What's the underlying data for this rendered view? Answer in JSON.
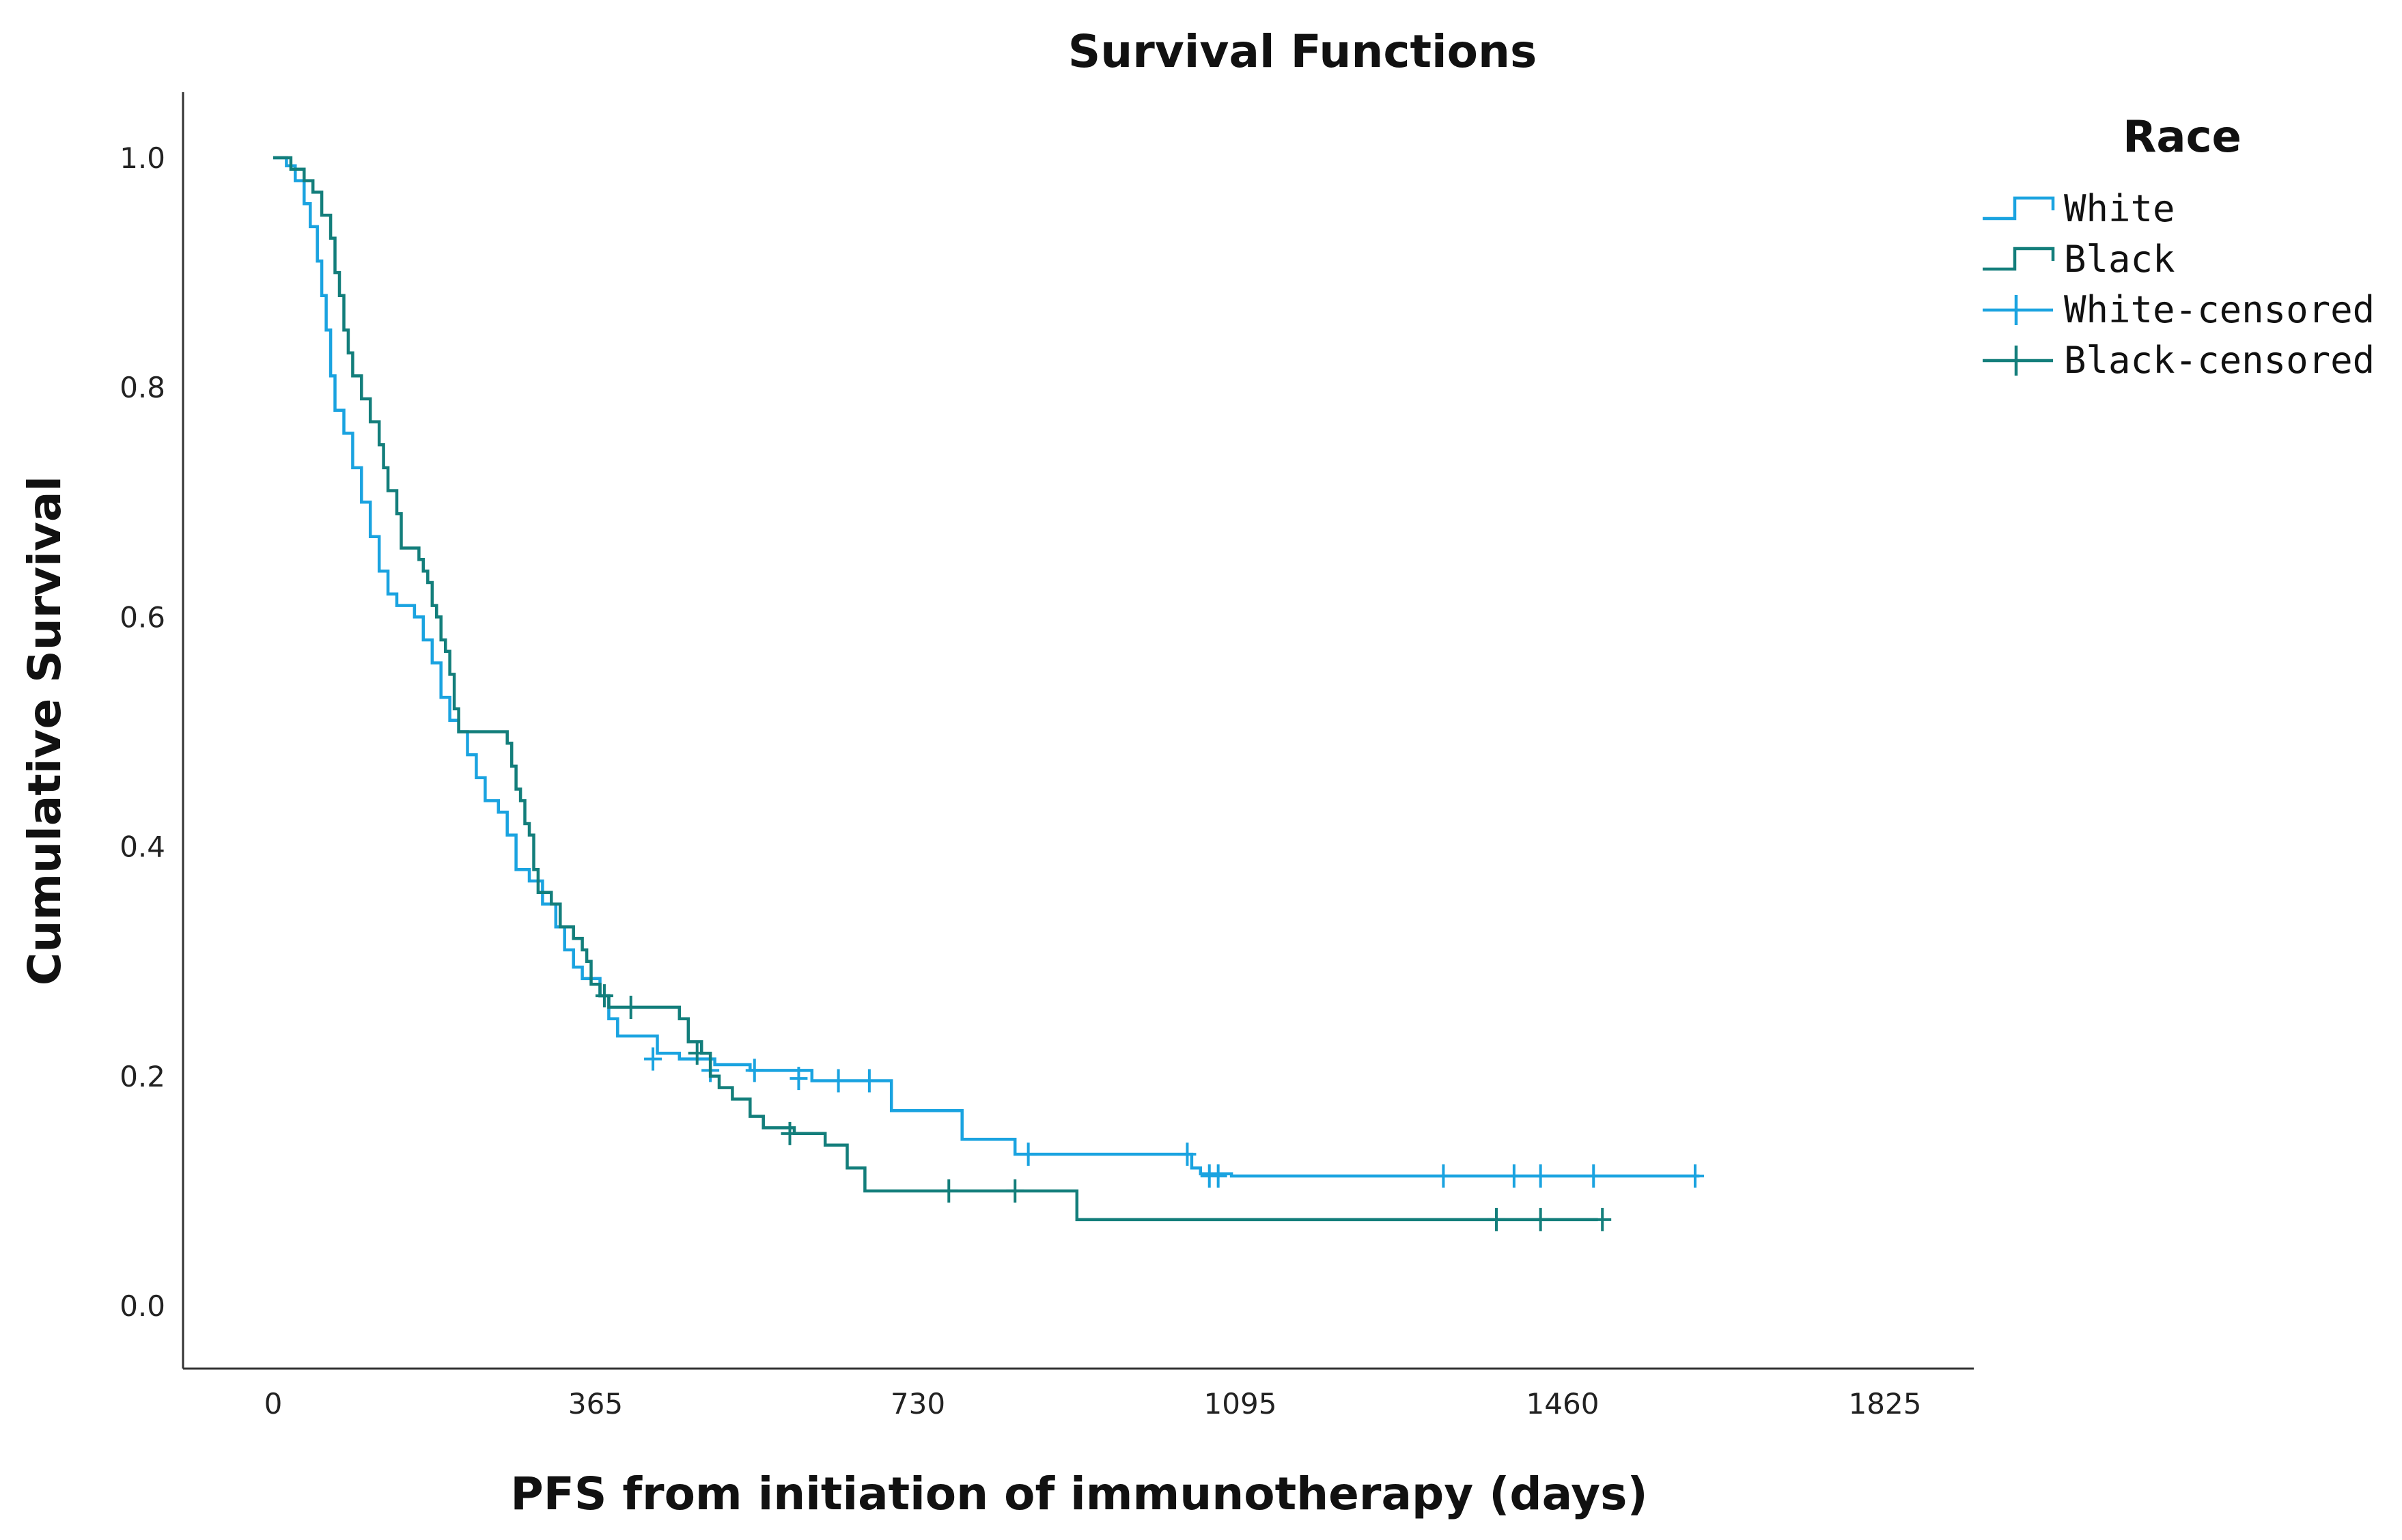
{
  "chart_data": {
    "type": "line",
    "subtype": "kaplan-meier-step",
    "title": "Survival Functions",
    "xlabel": "PFS from initiation of immunotherapy (days)",
    "ylabel": "Cumulative Survival",
    "xlim": [
      0,
      1825
    ],
    "ylim": [
      0,
      1.0
    ],
    "x_ticks": [
      0,
      365,
      730,
      1095,
      1460,
      1825
    ],
    "x_tick_labels": [
      "0",
      "365",
      "730",
      "1095",
      "1460",
      "1825"
    ],
    "y_ticks": [
      0,
      0.2,
      0.4,
      0.6,
      0.8,
      1.0
    ],
    "y_tick_labels": [
      "0.0",
      "0.2",
      "0.4",
      "0.6",
      "0.8",
      "1.0"
    ],
    "grid": false,
    "legend": {
      "title": "Race",
      "placement": "top-right-outside",
      "entries": [
        {
          "label": "White",
          "kind": "step",
          "series": "White"
        },
        {
          "label": "Black",
          "kind": "step",
          "series": "Black"
        },
        {
          "label": "White-censored",
          "kind": "censor",
          "series": "White"
        },
        {
          "label": "Black-censored",
          "kind": "censor",
          "series": "Black"
        }
      ]
    },
    "series": [
      {
        "name": "White",
        "color": "#1aa3e0",
        "steps": [
          [
            0,
            1.0
          ],
          [
            15,
            0.993
          ],
          [
            25,
            0.98
          ],
          [
            35,
            0.96
          ],
          [
            42,
            0.94
          ],
          [
            50,
            0.91
          ],
          [
            55,
            0.88
          ],
          [
            60,
            0.85
          ],
          [
            65,
            0.81
          ],
          [
            70,
            0.78
          ],
          [
            80,
            0.76
          ],
          [
            90,
            0.73
          ],
          [
            100,
            0.7
          ],
          [
            110,
            0.67
          ],
          [
            120,
            0.64
          ],
          [
            130,
            0.62
          ],
          [
            140,
            0.61
          ],
          [
            160,
            0.6
          ],
          [
            170,
            0.58
          ],
          [
            180,
            0.56
          ],
          [
            190,
            0.53
          ],
          [
            200,
            0.51
          ],
          [
            210,
            0.5
          ],
          [
            220,
            0.48
          ],
          [
            230,
            0.46
          ],
          [
            240,
            0.44
          ],
          [
            255,
            0.43
          ],
          [
            265,
            0.41
          ],
          [
            275,
            0.38
          ],
          [
            290,
            0.37
          ],
          [
            305,
            0.35
          ],
          [
            320,
            0.33
          ],
          [
            330,
            0.31
          ],
          [
            340,
            0.295
          ],
          [
            350,
            0.285
          ],
          [
            370,
            0.27
          ],
          [
            380,
            0.25
          ],
          [
            390,
            0.235
          ],
          [
            435,
            0.22
          ],
          [
            460,
            0.215
          ],
          [
            500,
            0.21
          ],
          [
            540,
            0.205
          ],
          [
            610,
            0.196
          ],
          [
            700,
            0.17
          ],
          [
            780,
            0.145
          ],
          [
            840,
            0.132
          ],
          [
            1040,
            0.12
          ],
          [
            1050,
            0.115
          ],
          [
            1085,
            0.113
          ],
          [
            1615,
            0.113
          ]
        ],
        "censored": [
          [
            430,
            0.215
          ],
          [
            495,
            0.205
          ],
          [
            545,
            0.205
          ],
          [
            595,
            0.198
          ],
          [
            640,
            0.196
          ],
          [
            675,
            0.196
          ],
          [
            855,
            0.132
          ],
          [
            1035,
            0.132
          ],
          [
            1060,
            0.113
          ],
          [
            1070,
            0.113
          ],
          [
            1325,
            0.113
          ],
          [
            1405,
            0.113
          ],
          [
            1435,
            0.113
          ],
          [
            1495,
            0.113
          ],
          [
            1610,
            0.113
          ]
        ]
      },
      {
        "name": "Black",
        "color": "#137e7b",
        "steps": [
          [
            0,
            1.0
          ],
          [
            20,
            0.99
          ],
          [
            35,
            0.98
          ],
          [
            45,
            0.97
          ],
          [
            55,
            0.95
          ],
          [
            65,
            0.93
          ],
          [
            70,
            0.9
          ],
          [
            75,
            0.88
          ],
          [
            80,
            0.85
          ],
          [
            85,
            0.83
          ],
          [
            90,
            0.81
          ],
          [
            100,
            0.79
          ],
          [
            110,
            0.77
          ],
          [
            120,
            0.75
          ],
          [
            125,
            0.73
          ],
          [
            130,
            0.71
          ],
          [
            140,
            0.69
          ],
          [
            145,
            0.66
          ],
          [
            165,
            0.65
          ],
          [
            170,
            0.64
          ],
          [
            175,
            0.63
          ],
          [
            180,
            0.61
          ],
          [
            185,
            0.6
          ],
          [
            190,
            0.58
          ],
          [
            195,
            0.57
          ],
          [
            200,
            0.55
          ],
          [
            205,
            0.52
          ],
          [
            210,
            0.5
          ],
          [
            240,
            0.5
          ],
          [
            265,
            0.49
          ],
          [
            270,
            0.47
          ],
          [
            275,
            0.45
          ],
          [
            280,
            0.44
          ],
          [
            285,
            0.42
          ],
          [
            290,
            0.41
          ],
          [
            295,
            0.38
          ],
          [
            300,
            0.36
          ],
          [
            315,
            0.35
          ],
          [
            325,
            0.33
          ],
          [
            340,
            0.32
          ],
          [
            350,
            0.31
          ],
          [
            355,
            0.3
          ],
          [
            360,
            0.28
          ],
          [
            370,
            0.27
          ],
          [
            380,
            0.26
          ],
          [
            460,
            0.25
          ],
          [
            470,
            0.23
          ],
          [
            485,
            0.22
          ],
          [
            495,
            0.2
          ],
          [
            505,
            0.19
          ],
          [
            520,
            0.18
          ],
          [
            540,
            0.165
          ],
          [
            555,
            0.155
          ],
          [
            590,
            0.15
          ],
          [
            625,
            0.14
          ],
          [
            650,
            0.12
          ],
          [
            670,
            0.1
          ],
          [
            910,
            0.075
          ],
          [
            1500,
            0.075
          ]
        ],
        "censored": [
          [
            375,
            0.27
          ],
          [
            405,
            0.26
          ],
          [
            480,
            0.22
          ],
          [
            585,
            0.15
          ],
          [
            765,
            0.1
          ],
          [
            840,
            0.1
          ],
          [
            1385,
            0.075
          ],
          [
            1435,
            0.075
          ],
          [
            1505,
            0.075
          ]
        ]
      }
    ]
  }
}
